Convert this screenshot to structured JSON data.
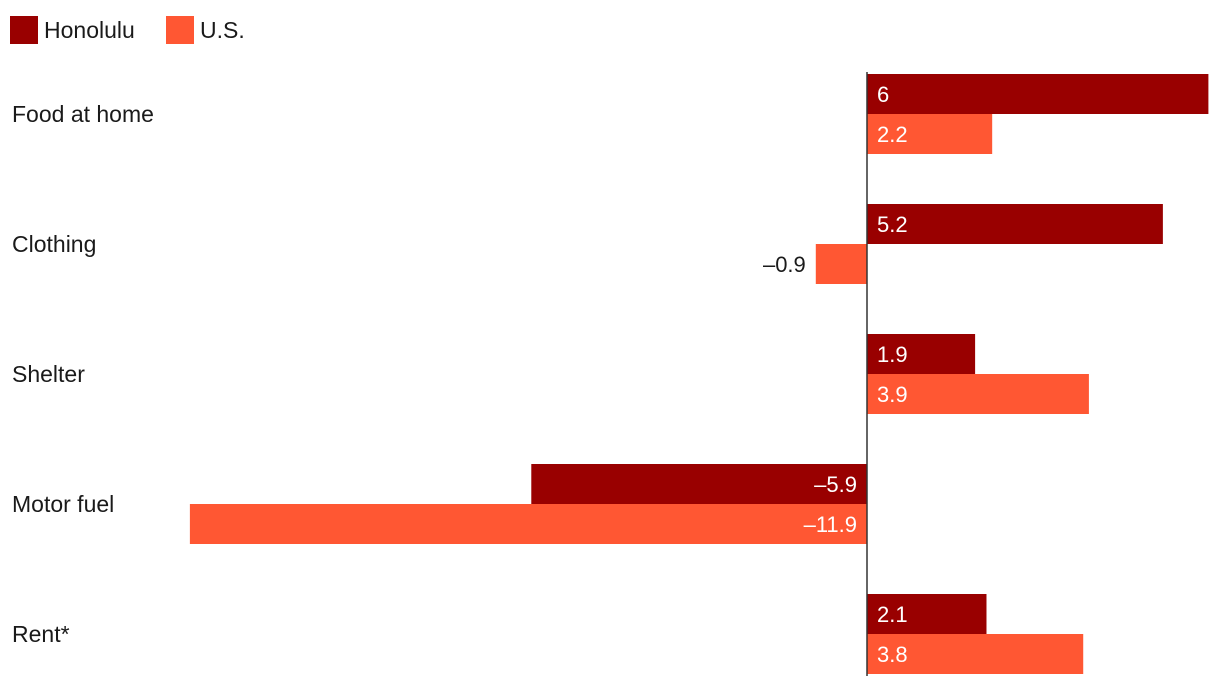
{
  "chart_data": {
    "type": "bar",
    "orientation": "horizontal",
    "categories": [
      "Food at home",
      "Clothing",
      "Shelter",
      "Motor fuel",
      "Rent*"
    ],
    "series": [
      {
        "name": "Honolulu",
        "color": "#990000",
        "values": [
          6,
          5.2,
          1.9,
          -5.9,
          2.1
        ]
      },
      {
        "name": "U.S.",
        "color": "#ff5733",
        "values": [
          2.2,
          -0.9,
          3.9,
          -11.9,
          3.8
        ]
      }
    ],
    "value_labels": [
      [
        "6",
        "5.2",
        "1.9",
        "–5.9",
        "2.1"
      ],
      [
        "2.2",
        "–0.9",
        "3.9",
        "–11.9",
        "3.8"
      ]
    ],
    "title": "",
    "xlabel": "",
    "ylabel": "",
    "xlim": [
      -11.9,
      6
    ],
    "grid": false,
    "legend": "top-left"
  }
}
